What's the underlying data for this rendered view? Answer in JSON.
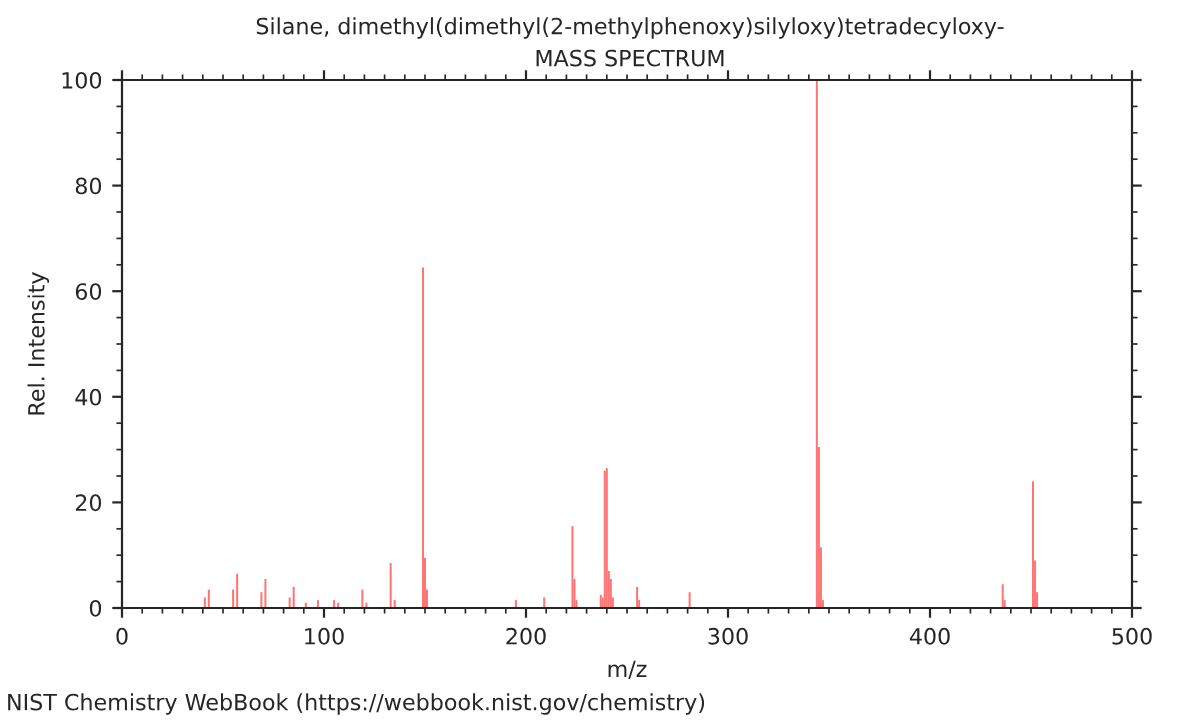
{
  "chart_data": {
    "type": "bar",
    "title": "Silane, dimethyl(dimethyl(2-methylphenoxy)silyloxy)tetradecyloxy-",
    "subtitle": "MASS SPECTRUM",
    "xlabel": "m/z",
    "ylabel": "Rel. Intensity",
    "x": [
      41,
      43,
      55,
      57,
      69,
      71,
      83,
      85,
      91,
      97,
      105,
      107,
      119,
      121,
      133,
      135,
      149,
      150,
      151,
      195,
      209,
      223,
      224,
      225,
      237,
      238,
      239,
      240,
      241,
      242,
      243,
      255,
      256,
      281,
      344,
      345,
      346,
      347,
      436,
      437,
      451,
      452,
      453
    ],
    "values": [
      2,
      3.5,
      3.5,
      6.5,
      3,
      5.5,
      2,
      4,
      1,
      1.5,
      1.5,
      1,
      3.5,
      1,
      8.5,
      1.5,
      64.5,
      9.5,
      3.5,
      1.5,
      2,
      15.5,
      5.5,
      1.5,
      2.5,
      2,
      26,
      26.5,
      7,
      5.5,
      2,
      4,
      1.5,
      3,
      100,
      30.5,
      11.5,
      1.5,
      4.5,
      1.5,
      24,
      9,
      3
    ],
    "color": "#ff6666",
    "xlim": [
      0,
      500
    ],
    "ylim": [
      0,
      100
    ],
    "xticks": [
      0,
      100,
      200,
      300,
      400,
      500
    ],
    "yticks": [
      0,
      20,
      40,
      60,
      80,
      100
    ],
    "grid": false,
    "annotations": [
      "NIST Chemistry WebBook (https://webbook.nist.gov/chemistry)"
    ]
  }
}
